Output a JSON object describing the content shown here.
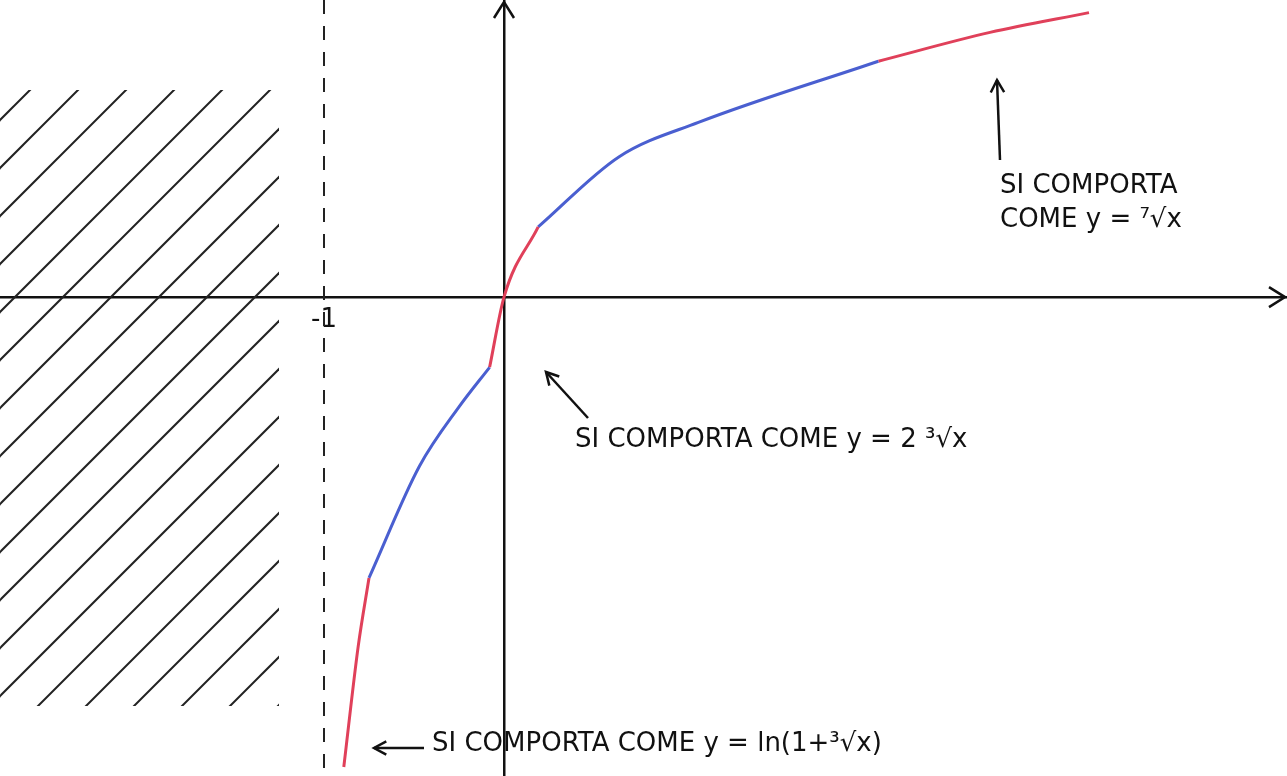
{
  "chart_data": {
    "type": "line",
    "series": [
      {
        "color": "#e0405a",
        "x": [
          -0.89,
          -0.81,
          -0.75
        ],
        "values": [
          -2.61,
          -1.94,
          -1.56
        ]
      },
      {
        "color": "#4a5fd0",
        "x": [
          -0.75,
          -0.47,
          -0.25,
          -0.08
        ],
        "values": [
          -1.56,
          -0.94,
          -0.61,
          -0.39
        ]
      },
      {
        "color": "#e0405a",
        "x": [
          -0.08,
          0,
          0.19
        ],
        "values": [
          -0.39,
          0,
          0.39
        ]
      },
      {
        "color": "#4a5fd0",
        "x": [
          0.19,
          0.64,
          1.08,
          2.08
        ],
        "values": [
          0.39,
          0.78,
          0.97,
          1.31
        ]
      },
      {
        "color": "#e0405a",
        "x": [
          2.08,
          2.7,
          3.25
        ],
        "values": [
          1.31,
          1.47,
          1.58
        ]
      }
    ],
    "asymptote_x": -1,
    "xlim": [
      -2.8,
      4.35
    ],
    "ylim": [
      -2.66,
      1.65
    ],
    "xticks": [
      -1
    ],
    "yticks": [],
    "tick_labels": "x",
    "grid": false,
    "annotations": [
      "SI COMPORTA COME y = ⁷√x",
      "SI COMPORTA COME y = 2 ³√x",
      "SI COMPORTA COME y = ln(1+³√x)"
    ]
  }
}
